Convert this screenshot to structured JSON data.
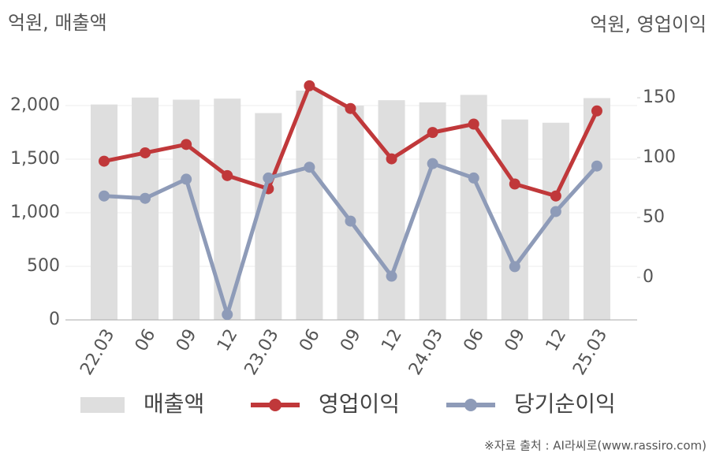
{
  "chart_data": {
    "type": "bar-line",
    "y_label": "억원, 매출액",
    "y2_label": "억원, 영업이익",
    "categories": [
      "22.03",
      "06",
      "09",
      "12",
      "23.03",
      "06",
      "09",
      "12",
      "24.03",
      "06",
      "09",
      "12",
      "25.03"
    ],
    "series": [
      {
        "name": "매출액",
        "type": "bar",
        "color": "#dedede",
        "values": [
          2010,
          2075,
          2055,
          2065,
          1930,
          2140,
          2000,
          2050,
          2030,
          2100,
          1870,
          1840,
          2070
        ]
      },
      {
        "name": "영업이익",
        "type": "line",
        "axis": "y2",
        "color": "#c0383a",
        "values": [
          97,
          104,
          111,
          85,
          74,
          160,
          141,
          99,
          121,
          128,
          78,
          68,
          139
        ]
      },
      {
        "name": "당기순이익",
        "type": "line",
        "axis": "y2",
        "color": "#8e9bb8",
        "values": [
          68,
          66,
          82,
          -31,
          83,
          92,
          47,
          1,
          95,
          83,
          9,
          55,
          93
        ]
      }
    ],
    "ylim": [
      0,
      2300
    ],
    "yticks": [
      0,
      500,
      {
        "value": 1000,
        "label": "1,000"
      },
      {
        "value": 1500,
        "label": "1,500"
      },
      {
        "value": 2000,
        "label": "2,000"
      }
    ],
    "y2lim": [
      -35.5,
      170.3
    ],
    "y2ticks": [
      0,
      50,
      100,
      150
    ],
    "grid": true,
    "source": "※자료 출처 : AI라씨로(www.rassiro.com)"
  }
}
